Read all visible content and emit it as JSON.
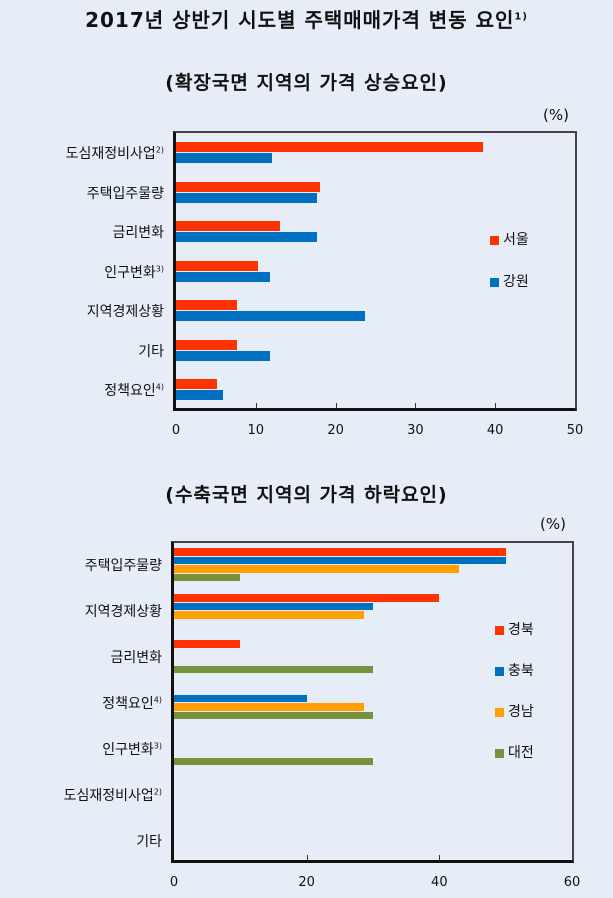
{
  "title": "2017년 상반기 시도별 주택매매가격 변동 요인",
  "title_footnote": "1)",
  "chart_data": [
    {
      "type": "bar",
      "orientation": "horizontal",
      "title": "(확장국면 지역의 가격 상승요인)",
      "unit": "(%)",
      "categories": [
        "도심재정비사업",
        "주택입주물량",
        "금리변화",
        "인구변화",
        "지역경제상황",
        "기타",
        "정책요인"
      ],
      "category_footnotes": [
        "2)",
        "",
        "",
        "3)",
        "",
        "",
        "4)"
      ],
      "series": [
        {
          "name": "서울",
          "color": "#ff3300",
          "values": [
            38.5,
            18.0,
            13.0,
            10.3,
            7.7,
            7.7,
            5.2
          ]
        },
        {
          "name": "강원",
          "color": "#0070c0",
          "values": [
            12.0,
            17.7,
            17.7,
            11.8,
            23.7,
            11.8,
            5.9
          ]
        }
      ],
      "xlim": [
        0,
        50
      ],
      "xticks": [
        "0",
        "10",
        "20",
        "30",
        "40",
        "50"
      ],
      "legend_position": "right"
    },
    {
      "type": "bar",
      "orientation": "horizontal",
      "title": "(수축국면 지역의 가격 하락요인)",
      "unit": "(%)",
      "categories": [
        "주택입주물량",
        "지역경제상황",
        "금리변화",
        "정책요인",
        "인구변화",
        "도심재정비사업",
        "기타"
      ],
      "category_footnotes": [
        "",
        "",
        "",
        "4)",
        "3)",
        "2)",
        ""
      ],
      "series": [
        {
          "name": "경북",
          "color": "#ff3300",
          "values": [
            50,
            40,
            10,
            0,
            0,
            0,
            0
          ]
        },
        {
          "name": "충북",
          "color": "#0070c0",
          "values": [
            50,
            30,
            0,
            20,
            0,
            0,
            0
          ]
        },
        {
          "name": "경남",
          "color": "#ffa000",
          "values": [
            43,
            28.6,
            0,
            28.6,
            0,
            0,
            0
          ]
        },
        {
          "name": "대전",
          "color": "#76923c",
          "values": [
            10,
            0,
            30,
            30,
            30,
            0,
            0
          ]
        }
      ],
      "xlim": [
        0,
        60
      ],
      "xticks": [
        "0",
        "20",
        "40",
        "60"
      ],
      "legend_position": "right"
    }
  ]
}
